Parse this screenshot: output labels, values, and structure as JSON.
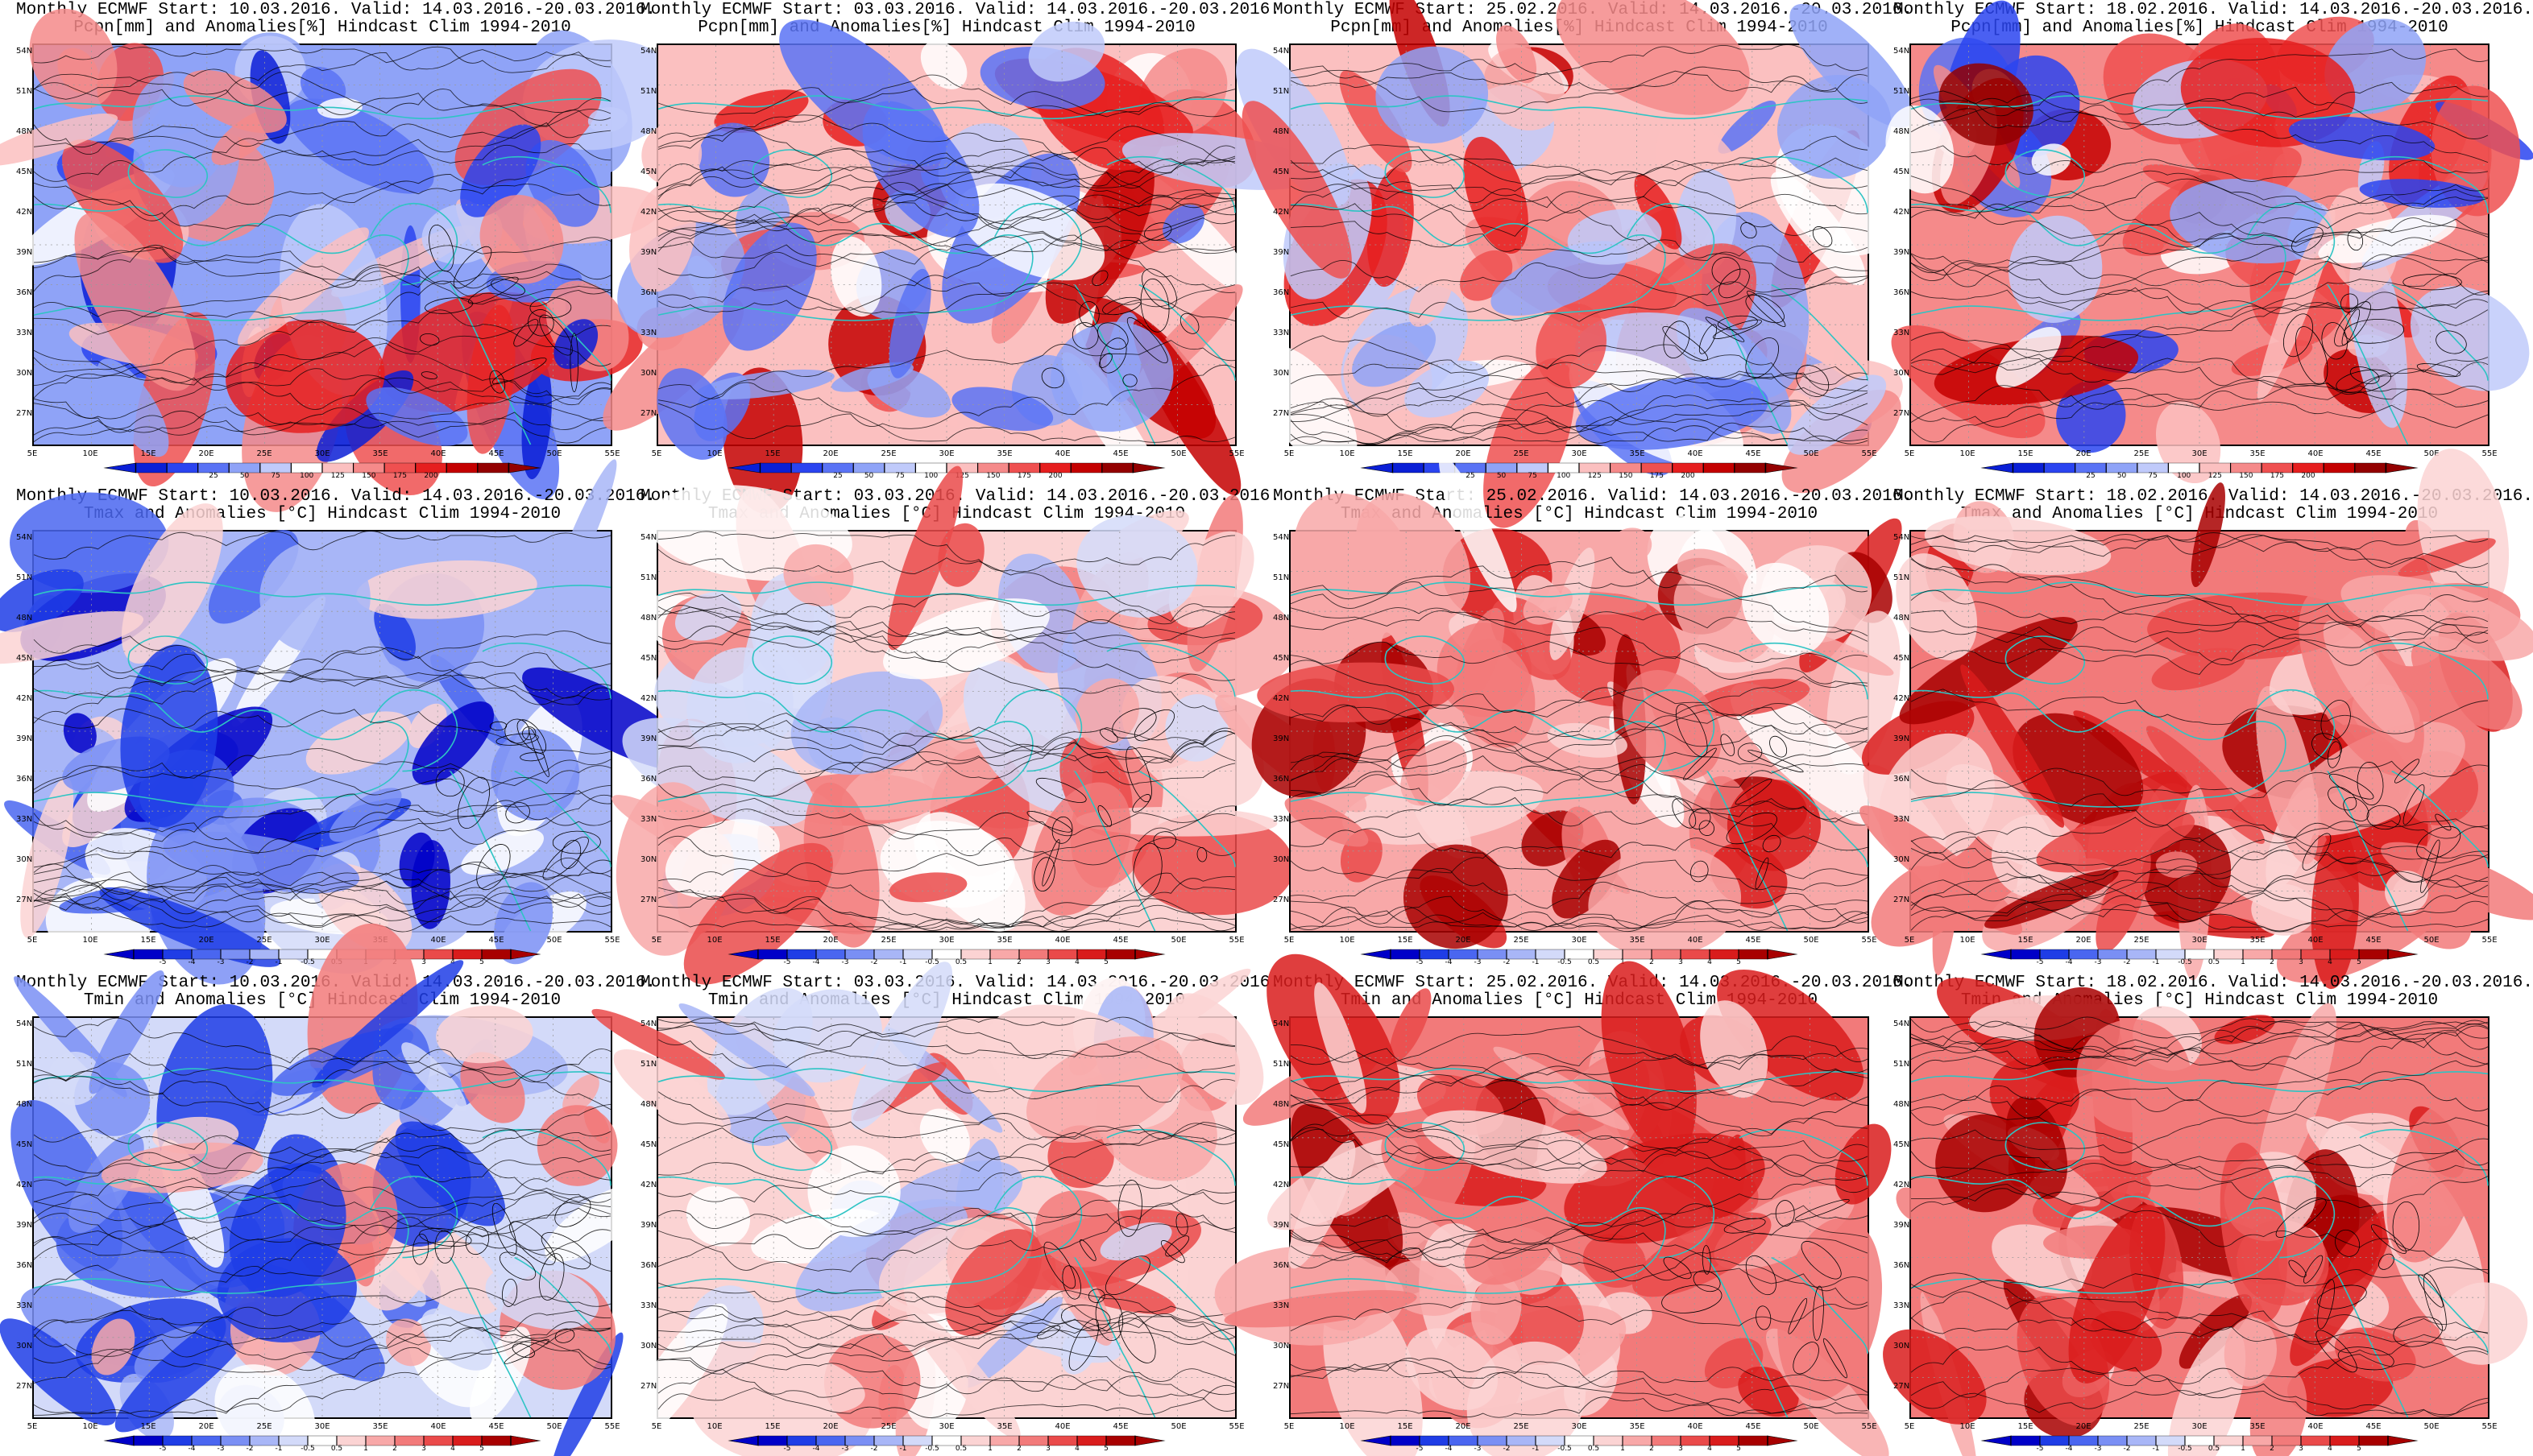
{
  "columns": [
    {
      "start": "10.03.2016",
      "valid": "14.03.2016.-20.03.2016."
    },
    {
      "start": "03.03.2016",
      "valid": "14.03.2016.-20.03.2016."
    },
    {
      "start": "25.02.2016",
      "valid": "14.03.2016.-20.03.2016."
    },
    {
      "start": "18.02.2016",
      "valid": "14.03.2016.-20.03.2016."
    }
  ],
  "rows": [
    {
      "variable": "pcpn",
      "titles": [
        [
          "Monthly ECMWF Start: 10.03.2016. Valid: 14.03.2016.-20.03.2016.",
          "Pcpn[mm] and Anomalies[%] Hindcast Clim 1994-2010"
        ],
        [
          "Monthly ECMWF Start: 03.03.2016. Valid: 14.03.2016.-20.03.2016.",
          "Pcpn[mm] and Anomalies[%] Hindcast Clim 1994-2010"
        ],
        [
          "Monthly ECMWF Start: 25.02.2016. Valid: 14.03.2016.-20.03.2016.",
          "Pcpn[mm] and Anomalies[%] Hindcast Clim 1994-2010"
        ],
        [
          "Monthly ECMWF Start: 18.02.2016. Valid: 14.03.2016.-20.03.2016.",
          "Pcpn[mm] and Anomalies[%] Hindcast Clim 1994-2010"
        ]
      ],
      "colorbar_ticks": [
        "25",
        "50",
        "75",
        "100",
        "125",
        "150",
        "175",
        "200"
      ],
      "colorbar_colors": [
        "#0a1fd6",
        "#2a44f0",
        "#5a73f5",
        "#8fa3f7",
        "#c0cafa",
        "#ffffff",
        "#fbc0c0",
        "#f58a8a",
        "#ef5050",
        "#e61e1e",
        "#c40000",
        "#930000"
      ],
      "panel_tone": [
        "mixed-blue",
        "mixed",
        "mixed",
        "mixed-red"
      ]
    },
    {
      "variable": "tmax",
      "titles": [
        [
          "Monthly ECMWF Start: 10.03.2016. Valid: 14.03.2016.-20.03.2016.",
          "Tmax and Anomalies [°C] Hindcast Clim 1994-2010"
        ],
        [
          "Monthly ECMWF Start: 03.03.2016. Valid: 14.03.2016.-20.03.2016.",
          "Tmax and Anomalies [°C] Hindcast Clim 1994-2010"
        ],
        [
          "Monthly ECMWF Start: 25.02.2016. Valid: 14.03.2016.-20.03.2016.",
          "Tmax and Anomalies [°C] Hindcast Clim 1994-2010"
        ],
        [
          "Monthly ECMWF Start: 18.02.2016. Valid: 14.03.2016.-20.03.2016.",
          "Tmax and Anomalies [°C] Hindcast Clim 1994-2010"
        ]
      ],
      "colorbar_ticks": [
        "-5",
        "-4",
        "-3",
        "-2",
        "-1",
        "-0.5",
        "0.5",
        "1",
        "2",
        "3",
        "4",
        "5"
      ],
      "colorbar_colors": [
        "#0000c8",
        "#1f3de6",
        "#4a66f0",
        "#7a8ff4",
        "#a8b6f7",
        "#d3daf9",
        "#ffffff",
        "#fbd3d3",
        "#f8a8a8",
        "#f27a7a",
        "#ea4a4a",
        "#d91c1c",
        "#a80000"
      ],
      "panel_tone": [
        "cool",
        "warm-light",
        "warm",
        "warm-strong"
      ]
    },
    {
      "variable": "tmin",
      "titles": [
        [
          "Monthly ECMWF Start: 10.03.2016. Valid: 14.03.2016.-20.03.2016.",
          "Tmin and Anomalies [°C] Hindcast Clim 1994-2010"
        ],
        [
          "Monthly ECMWF Start: 03.03.2016. Valid: 14.03.2016.-20.03.2016.",
          "Tmin and Anomalies [°C] Hindcast Clim 1994-2010"
        ],
        [
          "Monthly ECMWF Start: 25.02.2016. Valid: 14.03.2016.-20.03.2016.",
          "Tmin and Anomalies [°C] Hindcast Clim 1994-2010"
        ],
        [
          "Monthly ECMWF Start: 18.02.2016. Valid: 14.03.2016.-20.03.2016.",
          "Tmin and Anomalies [°C] Hindcast Clim 1994-2010"
        ]
      ],
      "colorbar_ticks": [
        "-5",
        "-4",
        "-3",
        "-2",
        "-1",
        "-0.5",
        "0.5",
        "1",
        "2",
        "3",
        "4",
        "5"
      ],
      "colorbar_colors": [
        "#0000c8",
        "#1f3de6",
        "#4a66f0",
        "#7a8ff4",
        "#a8b6f7",
        "#d3daf9",
        "#ffffff",
        "#fbd3d3",
        "#f8a8a8",
        "#f27a7a",
        "#ea4a4a",
        "#d91c1c",
        "#a80000"
      ],
      "panel_tone": [
        "mixed-cool",
        "warm-light",
        "warm-strong",
        "warm-strong"
      ]
    }
  ],
  "lat_labels": [
    "54N",
    "51N",
    "48N",
    "45N",
    "42N",
    "39N",
    "36N",
    "33N",
    "30N",
    "27N"
  ],
  "lon_labels": [
    "5E",
    "10E",
    "15E",
    "20E",
    "25E",
    "30E",
    "35E",
    "40E",
    "45E",
    "50E",
    "55E"
  ],
  "colors": {
    "coast": "#2ec4c4",
    "contour": "#000000",
    "frame": "#000000"
  }
}
